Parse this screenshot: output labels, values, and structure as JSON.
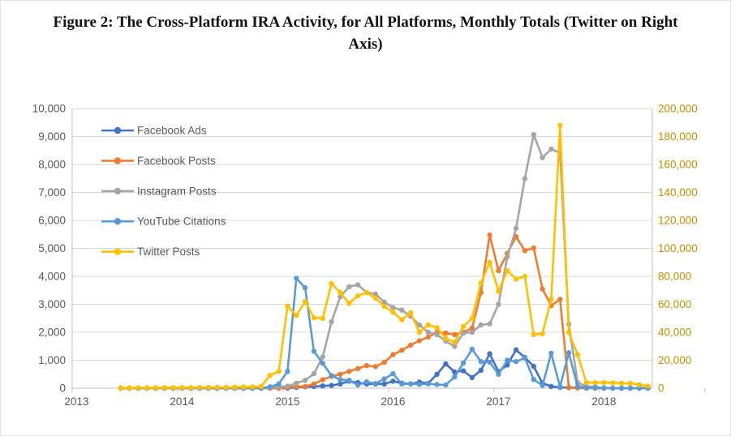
{
  "figure": {
    "title": "Figure 2: The Cross-Platform IRA Activity, for All Platforms, Monthly Totals (Twitter on Right Axis)"
  },
  "chart_data": {
    "type": "line",
    "title": "",
    "xlabel": "",
    "ylabel_left": "",
    "ylabel_right": "",
    "grid": true,
    "legend_position": "inside-top-left",
    "x_axis": {
      "tick_labels": [
        "2013",
        "2014",
        "2015",
        "2016",
        "2017",
        "2018"
      ]
    },
    "left_axis": {
      "min": 0,
      "max": 10000,
      "step": 1000,
      "tick_labels": [
        "0",
        "1,000",
        "2,000",
        "3,000",
        "4,000",
        "5,000",
        "6,000",
        "7,000",
        "8,000",
        "9,000",
        "10,000"
      ],
      "text_color": "#595959"
    },
    "right_axis": {
      "min": 0,
      "max": 200000,
      "step": 20000,
      "tick_labels": [
        "0",
        "20,000",
        "40,000",
        "60,000",
        "80,000",
        "100,000",
        "120,000",
        "140,000",
        "160,000",
        "180,000",
        "200,000"
      ],
      "text_color": "#BF9000"
    },
    "months": [
      "2013-06",
      "2013-07",
      "2013-08",
      "2013-09",
      "2013-10",
      "2013-11",
      "2013-12",
      "2014-01",
      "2014-02",
      "2014-03",
      "2014-04",
      "2014-05",
      "2014-06",
      "2014-07",
      "2014-08",
      "2014-09",
      "2014-10",
      "2014-11",
      "2014-12",
      "2015-01",
      "2015-02",
      "2015-03",
      "2015-04",
      "2015-05",
      "2015-06",
      "2015-07",
      "2015-08",
      "2015-09",
      "2015-10",
      "2015-11",
      "2015-12",
      "2016-01",
      "2016-02",
      "2016-03",
      "2016-04",
      "2016-05",
      "2016-06",
      "2016-07",
      "2016-08",
      "2016-09",
      "2016-10",
      "2016-11",
      "2016-12",
      "2017-01",
      "2017-02",
      "2017-03",
      "2017-04",
      "2017-05",
      "2017-06",
      "2017-07",
      "2017-08",
      "2017-09",
      "2017-10",
      "2017-11",
      "2017-12",
      "2018-01",
      "2018-02",
      "2018-03",
      "2018-04",
      "2018-05",
      "2018-06"
    ],
    "series": [
      {
        "name": "Facebook Ads",
        "color": "#4472C4",
        "axis": "left",
        "values": [
          0,
          0,
          0,
          0,
          0,
          0,
          0,
          0,
          0,
          0,
          0,
          0,
          0,
          0,
          0,
          0,
          0,
          0,
          0,
          0,
          30,
          50,
          60,
          80,
          100,
          150,
          250,
          200,
          150,
          150,
          150,
          250,
          180,
          150,
          220,
          175,
          500,
          870,
          580,
          620,
          380,
          640,
          1230,
          590,
          830,
          1370,
          1100,
          780,
          180,
          60,
          30,
          20,
          10,
          0,
          0,
          0,
          0,
          0,
          0,
          0,
          0
        ]
      },
      {
        "name": "Facebook Posts",
        "color": "#ED7D31",
        "axis": "left",
        "values": [
          0,
          0,
          0,
          0,
          0,
          0,
          0,
          0,
          0,
          0,
          0,
          0,
          0,
          0,
          0,
          0,
          0,
          0,
          0,
          30,
          60,
          60,
          150,
          300,
          425,
          500,
          600,
          700,
          810,
          775,
          925,
          1200,
          1360,
          1540,
          1700,
          1830,
          2000,
          1970,
          1920,
          2000,
          2150,
          3420,
          5480,
          4200,
          4820,
          5420,
          4920,
          5015,
          3550,
          2950,
          3180,
          30,
          20,
          10,
          10,
          0,
          0,
          0,
          0,
          0,
          0
        ]
      },
      {
        "name": "Instagram Posts",
        "color": "#A5A5A5",
        "axis": "left",
        "values": [
          0,
          0,
          0,
          0,
          0,
          0,
          0,
          0,
          0,
          0,
          0,
          0,
          0,
          0,
          0,
          0,
          0,
          20,
          50,
          70,
          180,
          280,
          520,
          1120,
          2380,
          3270,
          3630,
          3700,
          3420,
          3370,
          3080,
          2885,
          2790,
          2570,
          2260,
          2000,
          1920,
          1680,
          1500,
          1970,
          2000,
          2260,
          2300,
          3000,
          4700,
          5720,
          7500,
          9070,
          8250,
          8550,
          8420,
          2290,
          200,
          60,
          50,
          0,
          0,
          0,
          0,
          0,
          0
        ]
      },
      {
        "name": "YouTube Citations",
        "color": "#5B9BD5",
        "axis": "left",
        "values": [
          0,
          0,
          0,
          0,
          0,
          0,
          0,
          0,
          0,
          0,
          0,
          0,
          0,
          0,
          0,
          0,
          0,
          50,
          150,
          600,
          3930,
          3590,
          1320,
          890,
          450,
          310,
          280,
          115,
          230,
          165,
          330,
          520,
          150,
          160,
          140,
          155,
          130,
          120,
          400,
          900,
          1390,
          950,
          930,
          500,
          1000,
          950,
          1080,
          310,
          100,
          1250,
          50,
          1270,
          60,
          20,
          20,
          10,
          0,
          0,
          0,
          0,
          0
        ]
      },
      {
        "name": "Twitter Posts",
        "color": "#FFC000",
        "axis": "right",
        "values": [
          200,
          200,
          300,
          300,
          300,
          400,
          400,
          400,
          400,
          500,
          500,
          600,
          600,
          700,
          800,
          900,
          1200,
          9200,
          12000,
          58600,
          52000,
          62000,
          50400,
          50000,
          74800,
          68400,
          60700,
          66000,
          68400,
          64400,
          58600,
          54400,
          49000,
          54000,
          40000,
          45200,
          43200,
          35600,
          32800,
          44200,
          50000,
          75200,
          90000,
          69400,
          84000,
          78000,
          80000,
          38400,
          39000,
          63600,
          188000,
          40000,
          24000,
          4000,
          4000,
          4000,
          3800,
          3500,
          3500,
          2500,
          1500
        ]
      }
    ]
  },
  "colors": {
    "gridline": "#D9D9D9",
    "axis_line": "#BFBFBF",
    "axis_text": "#595959",
    "right_axis_text": "#BF9000",
    "legend_text": "#595959",
    "background": "#FFFFFF"
  }
}
